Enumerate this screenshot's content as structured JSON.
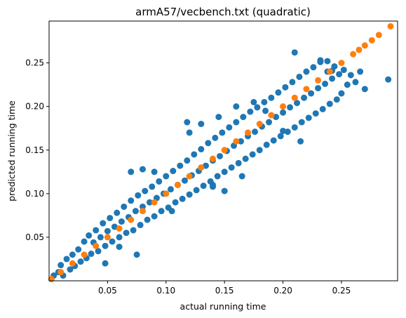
{
  "chart_data": {
    "type": "scatter",
    "title": "armA57/vecbench.txt (quadratic)",
    "xlabel": "actual running time",
    "ylabel": "predicted running time",
    "xlim": [
      0.0,
      0.298
    ],
    "ylim": [
      0.0,
      0.298
    ],
    "xticks": [
      0.05,
      0.1,
      0.15,
      0.2,
      0.25
    ],
    "xtick_labels": [
      "0.05",
      "0.10",
      "0.15",
      "0.20",
      "0.25"
    ],
    "yticks": [
      0.05,
      0.1,
      0.15,
      0.2,
      0.25
    ],
    "ytick_labels": [
      "0.05",
      "0.10",
      "0.15",
      "0.20",
      "0.25"
    ],
    "grid": false,
    "legend": "none",
    "series": [
      {
        "color": "#1f77b4",
        "points": [
          [
            0.004,
            0.006
          ],
          [
            0.008,
            0.01
          ],
          [
            0.01,
            0.018
          ],
          [
            0.012,
            0.006
          ],
          [
            0.015,
            0.025
          ],
          [
            0.018,
            0.013
          ],
          [
            0.02,
            0.03
          ],
          [
            0.022,
            0.017
          ],
          [
            0.025,
            0.036
          ],
          [
            0.027,
            0.022
          ],
          [
            0.03,
            0.045
          ],
          [
            0.032,
            0.026
          ],
          [
            0.034,
            0.052
          ],
          [
            0.036,
            0.031
          ],
          [
            0.038,
            0.044
          ],
          [
            0.04,
            0.058
          ],
          [
            0.042,
            0.034
          ],
          [
            0.044,
            0.05
          ],
          [
            0.046,
            0.066
          ],
          [
            0.048,
            0.04
          ],
          [
            0.05,
            0.057
          ],
          [
            0.052,
            0.072
          ],
          [
            0.054,
            0.045
          ],
          [
            0.056,
            0.062
          ],
          [
            0.058,
            0.078
          ],
          [
            0.06,
            0.05
          ],
          [
            0.062,
            0.068
          ],
          [
            0.064,
            0.085
          ],
          [
            0.066,
            0.055
          ],
          [
            0.068,
            0.073
          ],
          [
            0.07,
            0.092
          ],
          [
            0.072,
            0.058
          ],
          [
            0.074,
            0.08
          ],
          [
            0.076,
            0.098
          ],
          [
            0.078,
            0.064
          ],
          [
            0.08,
            0.085
          ],
          [
            0.082,
            0.103
          ],
          [
            0.084,
            0.07
          ],
          [
            0.086,
            0.09
          ],
          [
            0.088,
            0.108
          ],
          [
            0.09,
            0.074
          ],
          [
            0.092,
            0.095
          ],
          [
            0.094,
            0.114
          ],
          [
            0.096,
            0.08
          ],
          [
            0.098,
            0.1
          ],
          [
            0.1,
            0.12
          ],
          [
            0.102,
            0.084
          ],
          [
            0.104,
            0.105
          ],
          [
            0.106,
            0.126
          ],
          [
            0.108,
            0.09
          ],
          [
            0.11,
            0.11
          ],
          [
            0.112,
            0.132
          ],
          [
            0.114,
            0.094
          ],
          [
            0.116,
            0.115
          ],
          [
            0.118,
            0.138
          ],
          [
            0.12,
            0.099
          ],
          [
            0.122,
            0.121
          ],
          [
            0.124,
            0.145
          ],
          [
            0.126,
            0.104
          ],
          [
            0.128,
            0.126
          ],
          [
            0.13,
            0.151
          ],
          [
            0.132,
            0.109
          ],
          [
            0.134,
            0.132
          ],
          [
            0.136,
            0.158
          ],
          [
            0.138,
            0.114
          ],
          [
            0.14,
            0.138
          ],
          [
            0.142,
            0.164
          ],
          [
            0.144,
            0.12
          ],
          [
            0.146,
            0.143
          ],
          [
            0.148,
            0.17
          ],
          [
            0.15,
            0.125
          ],
          [
            0.152,
            0.149
          ],
          [
            0.154,
            0.176
          ],
          [
            0.156,
            0.13
          ],
          [
            0.158,
            0.155
          ],
          [
            0.16,
            0.182
          ],
          [
            0.162,
            0.135
          ],
          [
            0.164,
            0.16
          ],
          [
            0.166,
            0.188
          ],
          [
            0.168,
            0.14
          ],
          [
            0.17,
            0.166
          ],
          [
            0.172,
            0.194
          ],
          [
            0.174,
            0.145
          ],
          [
            0.176,
            0.171
          ],
          [
            0.178,
            0.199
          ],
          [
            0.18,
            0.15
          ],
          [
            0.182,
            0.177
          ],
          [
            0.184,
            0.205
          ],
          [
            0.186,
            0.156
          ],
          [
            0.188,
            0.182
          ],
          [
            0.19,
            0.21
          ],
          [
            0.192,
            0.161
          ],
          [
            0.194,
            0.188
          ],
          [
            0.196,
            0.216
          ],
          [
            0.198,
            0.166
          ],
          [
            0.2,
            0.193
          ],
          [
            0.202,
            0.222
          ],
          [
            0.204,
            0.171
          ],
          [
            0.206,
            0.199
          ],
          [
            0.208,
            0.228
          ],
          [
            0.21,
            0.176
          ],
          [
            0.212,
            0.204
          ],
          [
            0.214,
            0.234
          ],
          [
            0.216,
            0.182
          ],
          [
            0.218,
            0.21
          ],
          [
            0.22,
            0.24
          ],
          [
            0.222,
            0.187
          ],
          [
            0.224,
            0.215
          ],
          [
            0.226,
            0.245
          ],
          [
            0.228,
            0.192
          ],
          [
            0.23,
            0.221
          ],
          [
            0.232,
            0.251
          ],
          [
            0.234,
            0.197
          ],
          [
            0.236,
            0.226
          ],
          [
            0.238,
            0.24
          ],
          [
            0.24,
            0.203
          ],
          [
            0.242,
            0.232
          ],
          [
            0.244,
            0.246
          ],
          [
            0.246,
            0.208
          ],
          [
            0.248,
            0.237
          ],
          [
            0.25,
            0.215
          ],
          [
            0.252,
            0.242
          ],
          [
            0.255,
            0.225
          ],
          [
            0.258,
            0.236
          ],
          [
            0.262,
            0.228
          ],
          [
            0.266,
            0.24
          ],
          [
            0.27,
            0.22
          ],
          [
            0.29,
            0.231
          ],
          [
            0.232,
            0.253
          ],
          [
            0.238,
            0.252
          ],
          [
            0.242,
            0.241
          ],
          [
            0.21,
            0.262
          ],
          [
            0.13,
            0.18
          ],
          [
            0.118,
            0.182
          ],
          [
            0.145,
            0.188
          ],
          [
            0.09,
            0.125
          ],
          [
            0.07,
            0.125
          ],
          [
            0.08,
            0.128
          ],
          [
            0.16,
            0.2
          ],
          [
            0.175,
            0.205
          ],
          [
            0.185,
            0.195
          ],
          [
            0.12,
            0.17
          ],
          [
            0.2,
            0.172
          ],
          [
            0.215,
            0.16
          ],
          [
            0.14,
            0.11
          ],
          [
            0.15,
            0.103
          ],
          [
            0.165,
            0.12
          ],
          [
            0.105,
            0.08
          ],
          [
            0.075,
            0.03
          ],
          [
            0.06,
            0.039
          ],
          [
            0.048,
            0.02
          ],
          [
            0.14,
            0.108
          ]
        ]
      },
      {
        "color": "#ff7f0e",
        "points": [
          [
            0.002,
            0.002
          ],
          [
            0.01,
            0.01
          ],
          [
            0.02,
            0.02
          ],
          [
            0.03,
            0.03
          ],
          [
            0.04,
            0.04
          ],
          [
            0.05,
            0.05
          ],
          [
            0.06,
            0.06
          ],
          [
            0.07,
            0.07
          ],
          [
            0.08,
            0.08
          ],
          [
            0.09,
            0.09
          ],
          [
            0.1,
            0.1
          ],
          [
            0.11,
            0.11
          ],
          [
            0.12,
            0.12
          ],
          [
            0.13,
            0.13
          ],
          [
            0.14,
            0.14
          ],
          [
            0.15,
            0.15
          ],
          [
            0.16,
            0.16
          ],
          [
            0.17,
            0.17
          ],
          [
            0.18,
            0.18
          ],
          [
            0.19,
            0.19
          ],
          [
            0.2,
            0.2
          ],
          [
            0.21,
            0.21
          ],
          [
            0.22,
            0.22
          ],
          [
            0.23,
            0.23
          ],
          [
            0.24,
            0.24
          ],
          [
            0.25,
            0.25
          ],
          [
            0.26,
            0.26
          ],
          [
            0.265,
            0.265
          ],
          [
            0.27,
            0.27
          ],
          [
            0.276,
            0.276
          ],
          [
            0.282,
            0.282
          ],
          [
            0.292,
            0.292
          ]
        ]
      }
    ]
  }
}
